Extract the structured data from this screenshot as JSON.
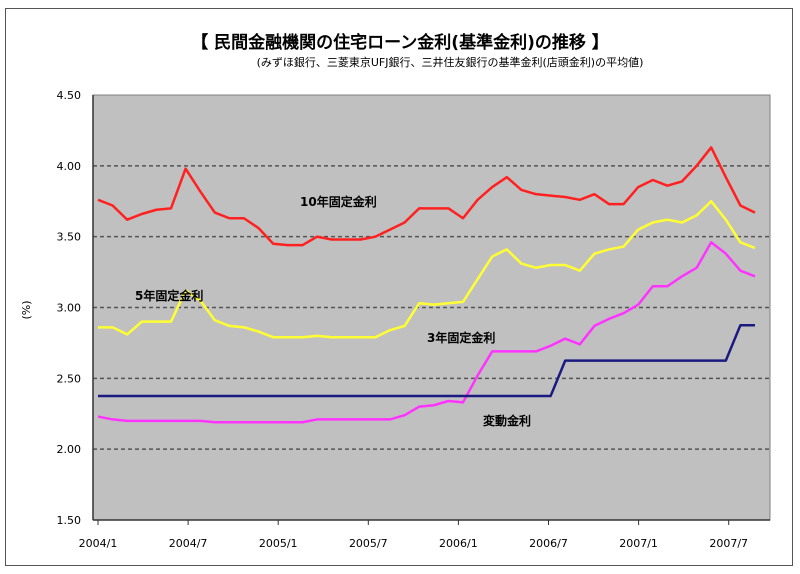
{
  "chart_data": {
    "type": "line",
    "title": "【 民間金融機関の住宅ローン金利(基準金利)の推移 】",
    "subtitle": "(みずほ銀行、三菱東京UFJ銀行、三井住友銀行の基準金利(店頭金利)の平均値)",
    "ylabel": "(%)",
    "xlabel": "",
    "ylim": [
      1.5,
      4.5
    ],
    "yticks": [
      "1.50",
      "2.00",
      "2.50",
      "3.00",
      "3.50",
      "4.00",
      "4.50"
    ],
    "xtick_labels": [
      "2004/1",
      "2004/7",
      "2005/1",
      "2005/7",
      "2006/1",
      "2006/7",
      "2007/1",
      "2007/7"
    ],
    "x_start": "2004/1",
    "x_end": "2007/10",
    "grid": "horizontal dashed",
    "plot_background": "#c0c0c0",
    "series": [
      {
        "name": "10年固定金利",
        "color": "#ff2020",
        "values": [
          3.76,
          3.72,
          3.62,
          3.66,
          3.69,
          3.7,
          3.98,
          3.82,
          3.67,
          3.63,
          3.63,
          3.56,
          3.45,
          3.44,
          3.44,
          3.5,
          3.48,
          3.48,
          3.48,
          3.5,
          3.55,
          3.6,
          3.7,
          3.7,
          3.7,
          3.63,
          3.76,
          3.85,
          3.92,
          3.83,
          3.8,
          3.79,
          3.78,
          3.76,
          3.8,
          3.73,
          3.73,
          3.85,
          3.9,
          3.86,
          3.89,
          4.0,
          4.13,
          3.92,
          3.72,
          3.67
        ]
      },
      {
        "name": "5年固定金利",
        "color": "#ffff33",
        "values": [
          2.86,
          2.86,
          2.81,
          2.9,
          2.9,
          2.9,
          3.12,
          3.05,
          2.91,
          2.87,
          2.86,
          2.83,
          2.79,
          2.79,
          2.79,
          2.8,
          2.79,
          2.79,
          2.79,
          2.79,
          2.84,
          2.87,
          3.03,
          3.02,
          3.03,
          3.04,
          3.2,
          3.36,
          3.41,
          3.31,
          3.28,
          3.3,
          3.3,
          3.26,
          3.38,
          3.41,
          3.43,
          3.55,
          3.6,
          3.62,
          3.6,
          3.65,
          3.75,
          3.62,
          3.46,
          3.42
        ]
      },
      {
        "name": "3年固定金利",
        "color": "#ff33ff",
        "values": [
          2.23,
          2.21,
          2.2,
          2.2,
          2.2,
          2.2,
          2.2,
          2.2,
          2.19,
          2.19,
          2.19,
          2.19,
          2.19,
          2.19,
          2.19,
          2.21,
          2.21,
          2.21,
          2.21,
          2.21,
          2.21,
          2.24,
          2.3,
          2.31,
          2.34,
          2.33,
          2.52,
          2.69,
          2.69,
          2.69,
          2.69,
          2.73,
          2.78,
          2.74,
          2.87,
          2.92,
          2.96,
          3.02,
          3.15,
          3.15,
          3.22,
          3.28,
          3.46,
          3.38,
          3.26,
          3.22
        ]
      },
      {
        "name": "変動金利",
        "color": "#1a1a80",
        "values": [
          2.375,
          2.375,
          2.375,
          2.375,
          2.375,
          2.375,
          2.375,
          2.375,
          2.375,
          2.375,
          2.375,
          2.375,
          2.375,
          2.375,
          2.375,
          2.375,
          2.375,
          2.375,
          2.375,
          2.375,
          2.375,
          2.375,
          2.375,
          2.375,
          2.375,
          2.375,
          2.375,
          2.375,
          2.375,
          2.375,
          2.375,
          2.375,
          2.625,
          2.625,
          2.625,
          2.625,
          2.625,
          2.625,
          2.625,
          2.625,
          2.625,
          2.625,
          2.625,
          2.625,
          2.875,
          2.875
        ]
      }
    ]
  }
}
